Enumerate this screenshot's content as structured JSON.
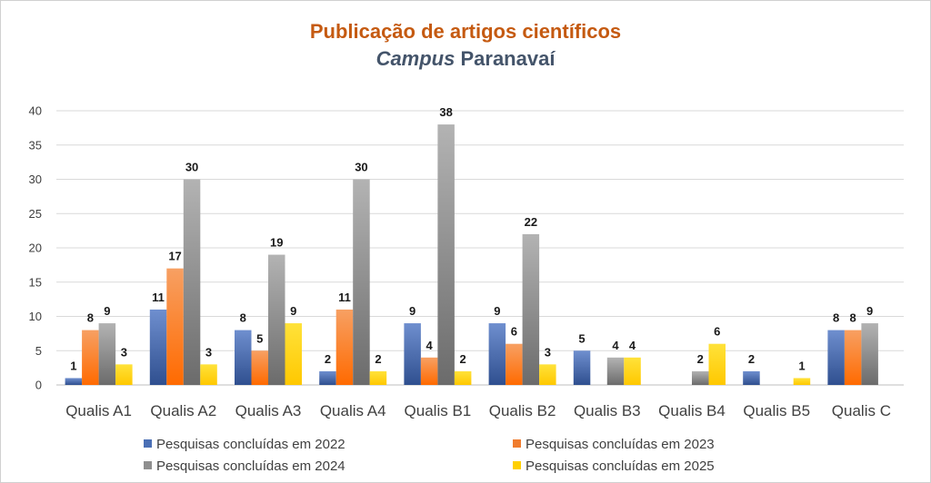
{
  "title_main": "Publicação de artigos científicos",
  "subtitle_italic": "Campus",
  "subtitle_rest": " Paranavaí",
  "colors": {
    "s2022": "#4a6fb5",
    "s2023": "#f07c2e",
    "s2024": "#8f8f8f",
    "s2025": "#ffd000",
    "grid": "#d9d9d9"
  },
  "chart_data": {
    "type": "bar",
    "title": "Publicação de artigos científicos",
    "subtitle": "Campus Paranavaí",
    "categories": [
      "Qualis A1",
      "Qualis A2",
      "Qualis A3",
      "Qualis A4",
      "Qualis B1",
      "Qualis B2",
      "Qualis B3",
      "Qualis B4",
      "Qualis B5",
      "Qualis C"
    ],
    "series": [
      {
        "name": "Pesquisas concluídas em 2022",
        "values": [
          1,
          11,
          8,
          2,
          9,
          9,
          5,
          null,
          2,
          8
        ]
      },
      {
        "name": "Pesquisas concluídas em 2023",
        "values": [
          8,
          17,
          5,
          11,
          4,
          6,
          null,
          null,
          null,
          8
        ]
      },
      {
        "name": "Pesquisas concluídas em 2024",
        "values": [
          9,
          30,
          19,
          30,
          38,
          22,
          4,
          2,
          null,
          9
        ]
      },
      {
        "name": "Pesquisas concluídas em 2025",
        "values": [
          3,
          3,
          9,
          2,
          2,
          3,
          4,
          6,
          1,
          null
        ]
      }
    ],
    "ylim": [
      0,
      40
    ],
    "yticks": [
      0,
      5,
      10,
      15,
      20,
      25,
      30,
      35,
      40
    ],
    "grid": true,
    "legend_position": "bottom"
  },
  "legend": [
    {
      "label": "Pesquisas concluídas em 2022",
      "color": "#4a6fb5"
    },
    {
      "label": "Pesquisas concluídas em 2023",
      "color": "#f07c2e"
    },
    {
      "label": "Pesquisas concluídas em 2024",
      "color": "#8f8f8f"
    },
    {
      "label": "Pesquisas concluídas em 2025",
      "color": "#ffd000"
    }
  ]
}
